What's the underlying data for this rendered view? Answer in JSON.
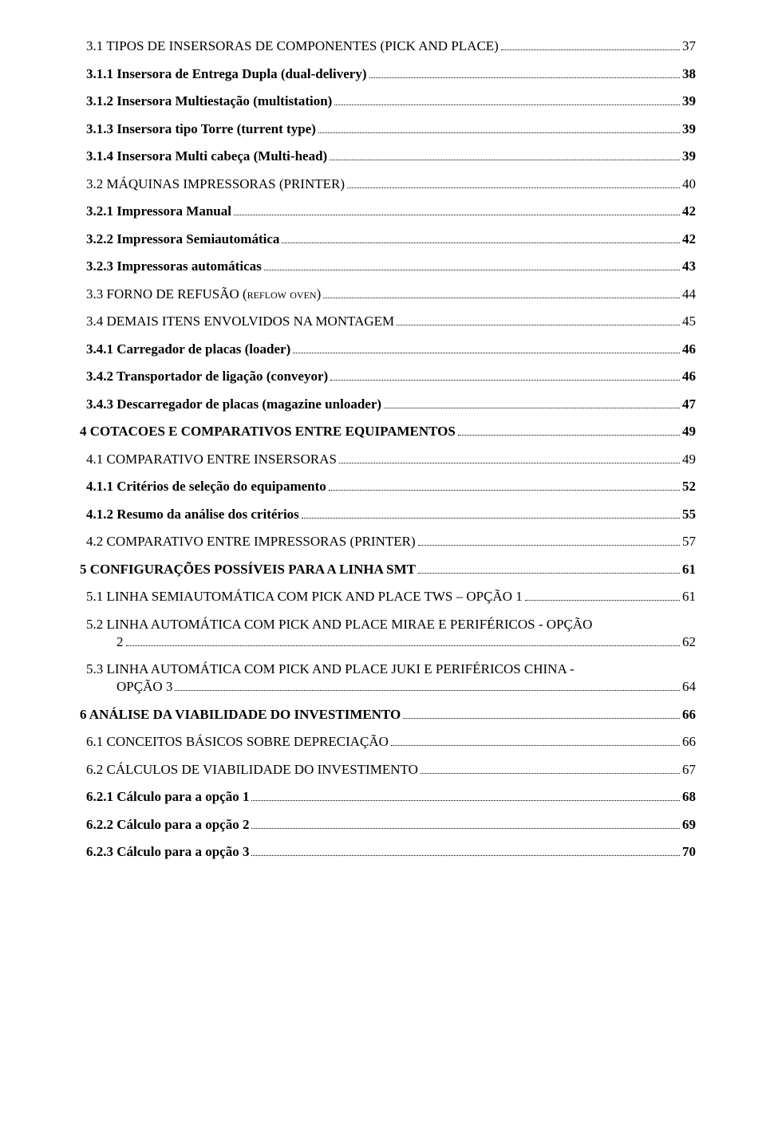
{
  "toc": [
    {
      "cls": "lvl2",
      "label": "3.1  TIPOS DE INSERSORAS DE COMPONENTES (PICK AND PLACE)",
      "page": "37"
    },
    {
      "cls": "lvl3",
      "label": "3.1.1 Insersora de Entrega Dupla (dual-delivery)",
      "page": "38"
    },
    {
      "cls": "lvl3",
      "label": "3.1.2 Insersora Multiestação (multistation)",
      "page": "39"
    },
    {
      "cls": "lvl3",
      "label": "3.1.3 Insersora tipo Torre (turrent type)",
      "page": "39"
    },
    {
      "cls": "lvl3",
      "label": "3.1.4 Insersora Multi cabeça (Multi-head)",
      "page": "39"
    },
    {
      "cls": "lvl2",
      "label": "3.2  MÁQUINAS IMPRESSORAS (PRINTER)",
      "page": "40"
    },
    {
      "cls": "lvl3",
      "label": "3.2.1 Impressora Manual",
      "page": "42"
    },
    {
      "cls": "lvl3",
      "label": "3.2.2 Impressora Semiautomática",
      "page": "42"
    },
    {
      "cls": "lvl3",
      "label": "3.2.3 Impressoras automáticas",
      "page": "43"
    },
    {
      "cls": "lvl2 sc",
      "label": "3.3  FORNO DE REFUSÃO (reflow oven)",
      "page": "44"
    },
    {
      "cls": "lvl2",
      "label": "3.4  DEMAIS ITENS ENVOLVIDOS NA MONTAGEM",
      "page": "45"
    },
    {
      "cls": "lvl3",
      "label": "3.4.1 Carregador de placas (loader)",
      "page": "46"
    },
    {
      "cls": "lvl3",
      "label": "3.4.2 Transportador de ligação (conveyor)",
      "page": "46"
    },
    {
      "cls": "lvl3",
      "label": "3.4.3 Descarregador de placas (magazine unloader)",
      "page": "47"
    },
    {
      "cls": "lvl1",
      "label": "4   COTACOES E COMPARATIVOS ENTRE EQUIPAMENTOS",
      "page": "49"
    },
    {
      "cls": "lvl2",
      "label": "4.1  COMPARATIVO ENTRE INSERSORAS",
      "page": "49"
    },
    {
      "cls": "lvl3",
      "label": "4.1.1 Critérios de seleção do equipamento",
      "page": "52"
    },
    {
      "cls": "lvl3",
      "label": "4.1.2 Resumo da análise dos critérios",
      "page": "55"
    },
    {
      "cls": "lvl2",
      "label": "4.2  COMPARATIVO ENTRE IMPRESSORAS (PRINTER)",
      "page": "57"
    },
    {
      "cls": "lvl1",
      "label": "5   CONFIGURAÇÕES POSSÍVEIS PARA A LINHA SMT",
      "page": "61"
    },
    {
      "cls": "lvl2 sc",
      "label": "5.1  LINHA SEMIAUTOMÁTICA COM PICK AND PLACE TWS – OPÇÃO 1",
      "page": "61"
    }
  ],
  "wrap52": {
    "line1": "5.2  LINHA AUTOMÁTICA COM PICK AND PLACE MIRAE E PERIFÉRICOS -  OPÇÃO",
    "line2": "2",
    "page": "62"
  },
  "wrap53": {
    "line1": "5.3  LINHA  AUTOMÁTICA  COM  PICK  AND  PLACE  JUKI  E  PERIFÉRICOS  CHINA  -",
    "line2": "OPÇÃO 3",
    "page": "64"
  },
  "toc2": [
    {
      "cls": "lvl1",
      "label": "6   ANÁLISE DA VIABILIDADE DO INVESTIMENTO",
      "page": "66"
    },
    {
      "cls": "lvl2",
      "label": "6.1  CONCEITOS BÁSICOS SOBRE DEPRECIAÇÃO",
      "page": "66"
    },
    {
      "cls": "lvl2",
      "label": "6.2  CÁLCULOS DE VIABILIDADE DO INVESTIMENTO",
      "page": "67"
    },
    {
      "cls": "lvl3",
      "label": "6.2.1 Cálculo para a opção 1",
      "page": "68"
    },
    {
      "cls": "lvl3",
      "label": "6.2.2 Cálculo para a opção 2",
      "page": "69"
    },
    {
      "cls": "lvl3",
      "label": "6.2.3 Cálculo para a opção 3",
      "page": "70"
    }
  ]
}
